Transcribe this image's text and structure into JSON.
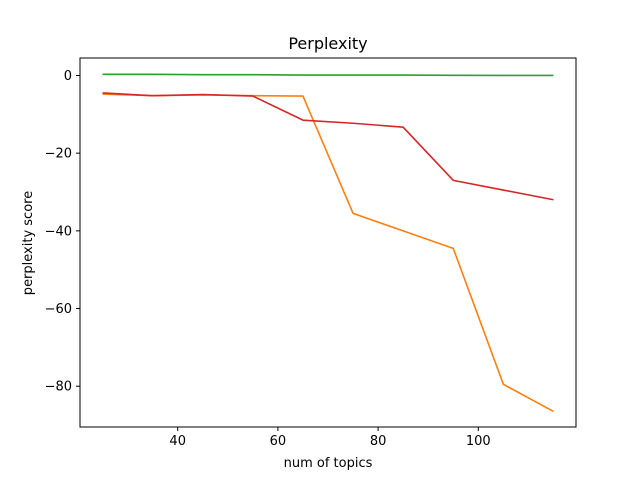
{
  "chart_data": {
    "type": "line",
    "title": "Perplexity",
    "xlabel": "num of topics",
    "ylabel": "perplexity score",
    "xlim": [
      20.5,
      119.5
    ],
    "ylim": [
      -90.5,
      4.5
    ],
    "xticks": [
      40,
      60,
      80,
      100
    ],
    "yticks": [
      0,
      -20,
      -40,
      -60,
      -80
    ],
    "grid": false,
    "series": [
      {
        "color": "#ff7f0e",
        "x": [
          25,
          35,
          45,
          55,
          65,
          75,
          85,
          95,
          105,
          115
        ],
        "y": [
          -4.8,
          -5.2,
          -5.0,
          -5.2,
          -5.3,
          -35.5,
          -40.0,
          -44.5,
          -79.5,
          -86.5
        ]
      },
      {
        "color": "#d62728",
        "x": [
          25,
          35,
          45,
          55,
          65,
          75,
          85,
          95,
          105,
          115
        ],
        "y": [
          -4.5,
          -5.2,
          -4.9,
          -5.3,
          -11.5,
          -12.3,
          -13.3,
          -27.0,
          -29.5,
          -32.0
        ]
      },
      {
        "color": "#2ca02c",
        "x": [
          25,
          35,
          45,
          55,
          65,
          75,
          85,
          95,
          105,
          115
        ],
        "y": [
          0.3,
          0.3,
          0.2,
          0.2,
          0.1,
          0.1,
          0.1,
          0.05,
          0.0,
          0.0
        ]
      }
    ]
  }
}
